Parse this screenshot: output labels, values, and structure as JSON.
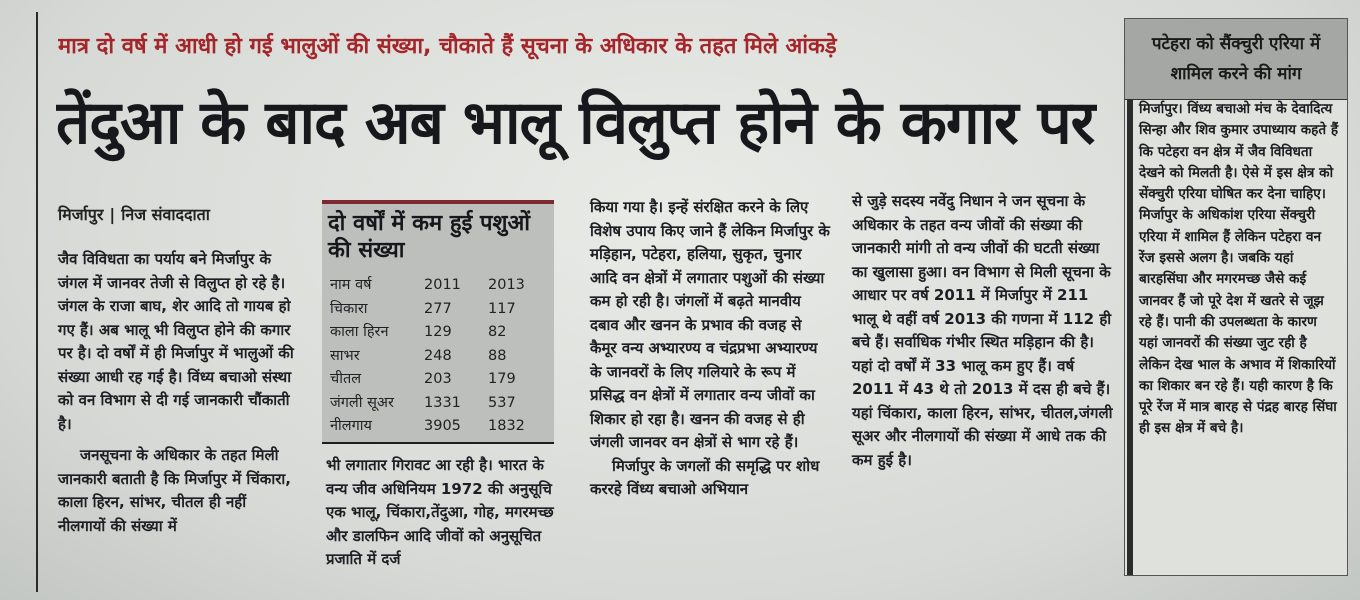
{
  "subheadline": "मात्र दो वर्ष में आधी हो गई भालुओं की संख्या, चौकाते हैं सूचना के अधिकार के तहत मिले आंकड़े",
  "headline": "तेंदुआ के बाद अब भालू विलुप्त होने के कगार पर",
  "byline": {
    "place": "मिर्जापुर",
    "separator": "|",
    "author": "निज संवाददाता"
  },
  "table": {
    "title": "दो वर्षों में कम हुई पशुओं की संख्या",
    "header": [
      "नाम वर्ष",
      "2011",
      "2013"
    ],
    "rows": [
      [
        "चिकारा",
        "277",
        "117"
      ],
      [
        "काला हिरन",
        "129",
        "82"
      ],
      [
        "साभर",
        "248",
        "88"
      ],
      [
        "चीतल",
        "203",
        "179"
      ],
      [
        "जंगली सूअर",
        "1331",
        "537"
      ],
      [
        "नीलगाय",
        "3905",
        "1832"
      ]
    ]
  },
  "columns": {
    "col1_p1": "जैव विविधता का पर्याय बने मिर्जापुर के जंगल में जानवर तेजी से विलुप्त हो रहे है। जंगल के राजा बाघ, शेर आदि तो गायब हो गए हैं। अब भालू भी विलुप्त होने की कगार पर है। दो वर्षों में ही मिर्जापुर में भालुओं की संख्या आधी रह गई है। विंध्य बचाओ संस्था को वन विभाग से दी गई जानकारी चौंकाती है।",
    "col1_p2": "जनसूचना के अधिकार के तहत मिली जानकारी बताती है कि मिर्जापुर में चिंकारा, काला हिरन, सांभर, चीतल ही नहीं नीलगायों की संख्या में",
    "col2_p1": "भी लगातार गिरावट आ रही है। भारत के वन्य जीव अधिनियम 1972 की अनुसूचि एक भालू, चिंकारा,तेंदुआ, गोह, मगरमच्छ और डालफिन आदि जीवों को अनुसूचित प्रजाति में दर्ज",
    "col3_p1": "किया गया है। इन्हें संरक्षित करने के लिए विशेष उपाय किए जाने हैं लेकिन मिर्जापुर के मड़िहान, पटेहरा, हलिया, सुकृत, चुनार आदि वन क्षेत्रों में लगातार पशुओं की संख्या कम हो रही है। जंगलों में बढ़ते मानवीय दबाव और खनन के प्रभाव की वजह से कैमूर वन्य अभ्यारण्य व चंद्रप्रभा अभ्यारण्य के जानवरों के लिए गलियारे के रूप में प्रसिद्ध वन क्षेत्रों में लगातार वन्य जीवों का शिकार हो रहा है। खनन की वजह से ही जंगली जानवर वन क्षेत्रों से भाग रहे हैं।",
    "col3_p2": "मिर्जापुर के जगलों की समृद्धि पर शोध कररहे विंध्य बचाओ अभियान",
    "col4_p1": "से जुड़े सदस्य नवेंदु निधान ने जन सूचना के अधिकार के तहत वन्य जीवों की संख्या की जानकारी मांगी तो वन्य जीवों की घटती संख्या का खुलासा हुआ। वन विभाग से मिली सूचना के आधार पर वर्ष 2011 में मिर्जापुर में 211 भालू थे वहीं वर्ष 2013 की गणना में 112 ही बचे हैं। सर्वाधिक गंभीर स्थित मड़िहान की है। यहां दो वर्षों में 33 भालू कम हुए हैं। वर्ष 2011 में 43 थे तो 2013 में दस ही बचे हैं। यहां चिंकारा, काला हिरन, सांभर, चीतल,जंगली सूअर और नीलगायों की संख्या में आधे तक की कम हुई है।"
  },
  "sidebar": {
    "heading": "पटेहरा को सैंक्चुरी एरिया में शामिल करने की मांग",
    "body": "मिर्जापुर। विंध्य बचाओ मंच के देवादित्य सिन्हा और शिव कुमार उपाध्याय कहते हैं कि पटेहरा वन क्षेत्र में जैव विविधता देखने को मिलती है। ऐसे में इस क्षेत्र को सेंक्चुरी एरिया घोषित कर देना चाहिए। मिर्जापुर के अधिकांश एरिया सेंक्चुरी एरिया में शामिल हैं लेकिन पटेहरा वन रेंज इससे अलग है। जबकि यहां बारहसिंघा और मगरमच्छ जैसे कई जानवर हैं जो पूरे देश में खतरे से जूझ रहे हैं। पानी की उपलब्धता के कारण यहां जानवरों की संख्या जुट रही है लेकिन देख भाल के अभाव में शिकारियों का शिकार बन रहे हैं। यही कारण है कि पूरे रेंज में मात्र बारह से पंद्रह बारह सिंघा ही इस क्षेत्र में बचे है।"
  }
}
